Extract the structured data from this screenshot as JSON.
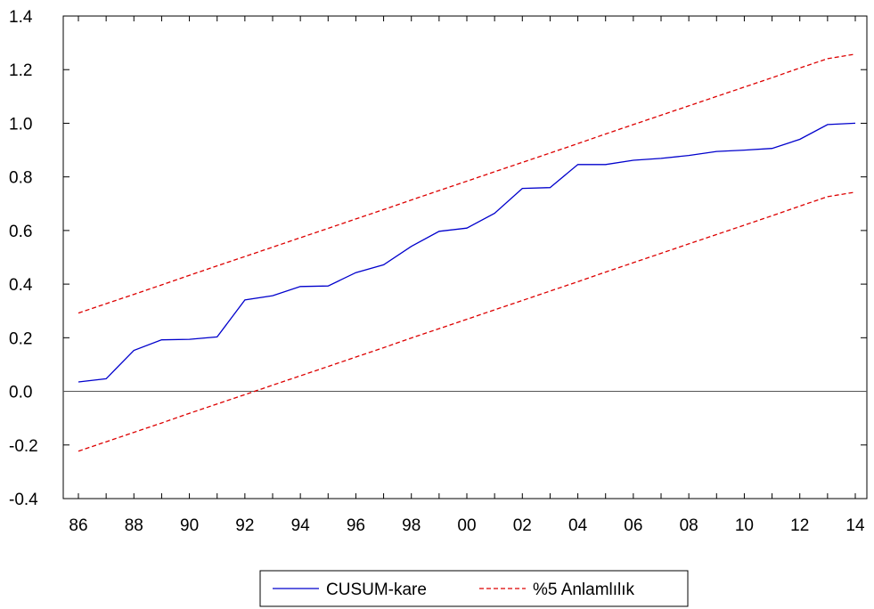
{
  "chart_data": {
    "type": "line",
    "title": "",
    "xlabel": "",
    "ylabel": "",
    "x": [
      1986,
      1987,
      1988,
      1989,
      1990,
      1991,
      1992,
      1993,
      1994,
      1995,
      1996,
      1997,
      1998,
      1999,
      2000,
      2001,
      2002,
      2003,
      2004,
      2005,
      2006,
      2007,
      2008,
      2009,
      2010,
      2011,
      2012,
      2013,
      2014
    ],
    "x_tick_labels": [
      "86",
      "88",
      "90",
      "92",
      "94",
      "96",
      "98",
      "00",
      "02",
      "04",
      "06",
      "08",
      "10",
      "12",
      "14"
    ],
    "x_tick_years": [
      1986,
      1988,
      1990,
      1992,
      1994,
      1996,
      1998,
      2000,
      2002,
      2004,
      2006,
      2008,
      2010,
      2012,
      2014
    ],
    "ylim": [
      -0.4,
      1.4
    ],
    "y_ticks": [
      -0.4,
      -0.2,
      0.0,
      0.2,
      0.4,
      0.6,
      0.8,
      1.0,
      1.2,
      1.4
    ],
    "y_tick_labels": [
      "-0.4",
      "-0.2",
      "0.0",
      "0.2",
      "0.4",
      "0.6",
      "0.8",
      "1.0",
      "1.2",
      "1.4"
    ],
    "grid": false,
    "zero_line": true,
    "legend_position": "bottom-center",
    "series": [
      {
        "name": "CUSUM-kare",
        "color": "#0000cc",
        "style": "solid",
        "values": [
          0.035,
          0.047,
          0.153,
          0.192,
          0.194,
          0.203,
          0.341,
          0.357,
          0.391,
          0.393,
          0.443,
          0.472,
          0.541,
          0.597,
          0.609,
          0.664,
          0.757,
          0.76,
          0.846,
          0.846,
          0.862,
          0.869,
          0.88,
          0.895,
          0.9,
          0.906,
          0.94,
          0.995,
          1.0
        ]
      },
      {
        "name": "%5 Anlamlılık",
        "color": "#dd0000",
        "style": "dashed",
        "values": [
          0.292,
          0.327,
          0.362,
          0.397,
          0.433,
          0.468,
          0.503,
          0.538,
          0.573,
          0.608,
          0.643,
          0.678,
          0.714,
          0.749,
          0.784,
          0.819,
          0.854,
          0.889,
          0.924,
          0.96,
          0.995,
          1.03,
          1.065,
          1.1,
          1.135,
          1.17,
          1.206,
          1.241,
          1.258
        ]
      },
      {
        "name": "",
        "color": "#dd0000",
        "style": "dashed",
        "values": [
          -0.223,
          -0.188,
          -0.153,
          -0.118,
          -0.082,
          -0.047,
          -0.012,
          0.023,
          0.058,
          0.093,
          0.128,
          0.163,
          0.199,
          0.234,
          0.269,
          0.304,
          0.339,
          0.374,
          0.409,
          0.445,
          0.48,
          0.515,
          0.55,
          0.585,
          0.62,
          0.655,
          0.691,
          0.726,
          0.743
        ]
      }
    ],
    "legend": [
      {
        "label": "CUSUM-kare",
        "color": "#0000cc",
        "style": "solid"
      },
      {
        "label": "%5 Anlamlılık",
        "color": "#dd0000",
        "style": "dashed"
      }
    ]
  }
}
